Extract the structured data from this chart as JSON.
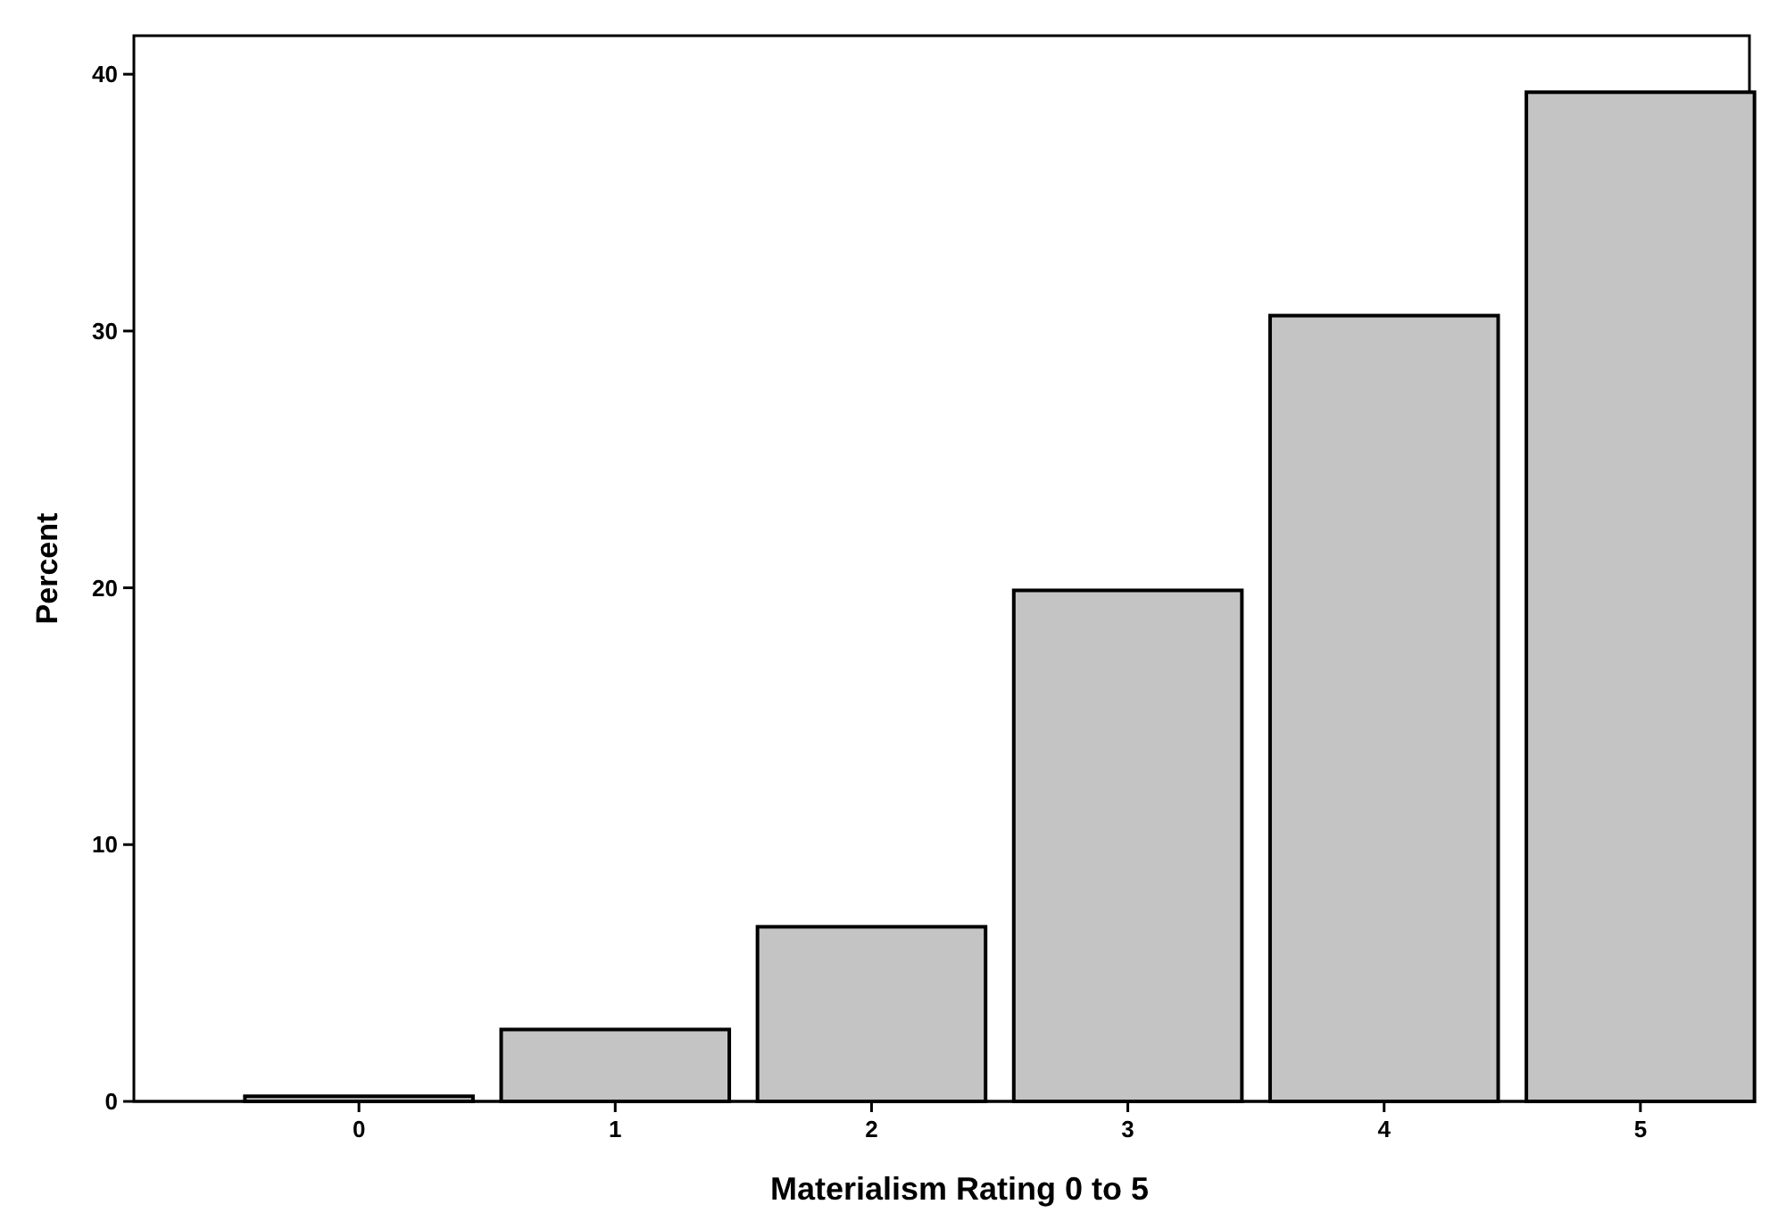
{
  "chart_data": {
    "type": "bar",
    "xlabel": "Materialism Rating 0 to 5",
    "ylabel": "Percent",
    "categories": [
      "0",
      "1",
      "2",
      "3",
      "4",
      "5"
    ],
    "values": [
      0.2,
      2.8,
      6.8,
      19.9,
      30.6,
      39.3
    ],
    "color": "#c4c4c4",
    "ylim": [
      0,
      41.5
    ],
    "yticks": [
      0,
      10,
      20,
      30,
      40
    ],
    "grid": false
  }
}
